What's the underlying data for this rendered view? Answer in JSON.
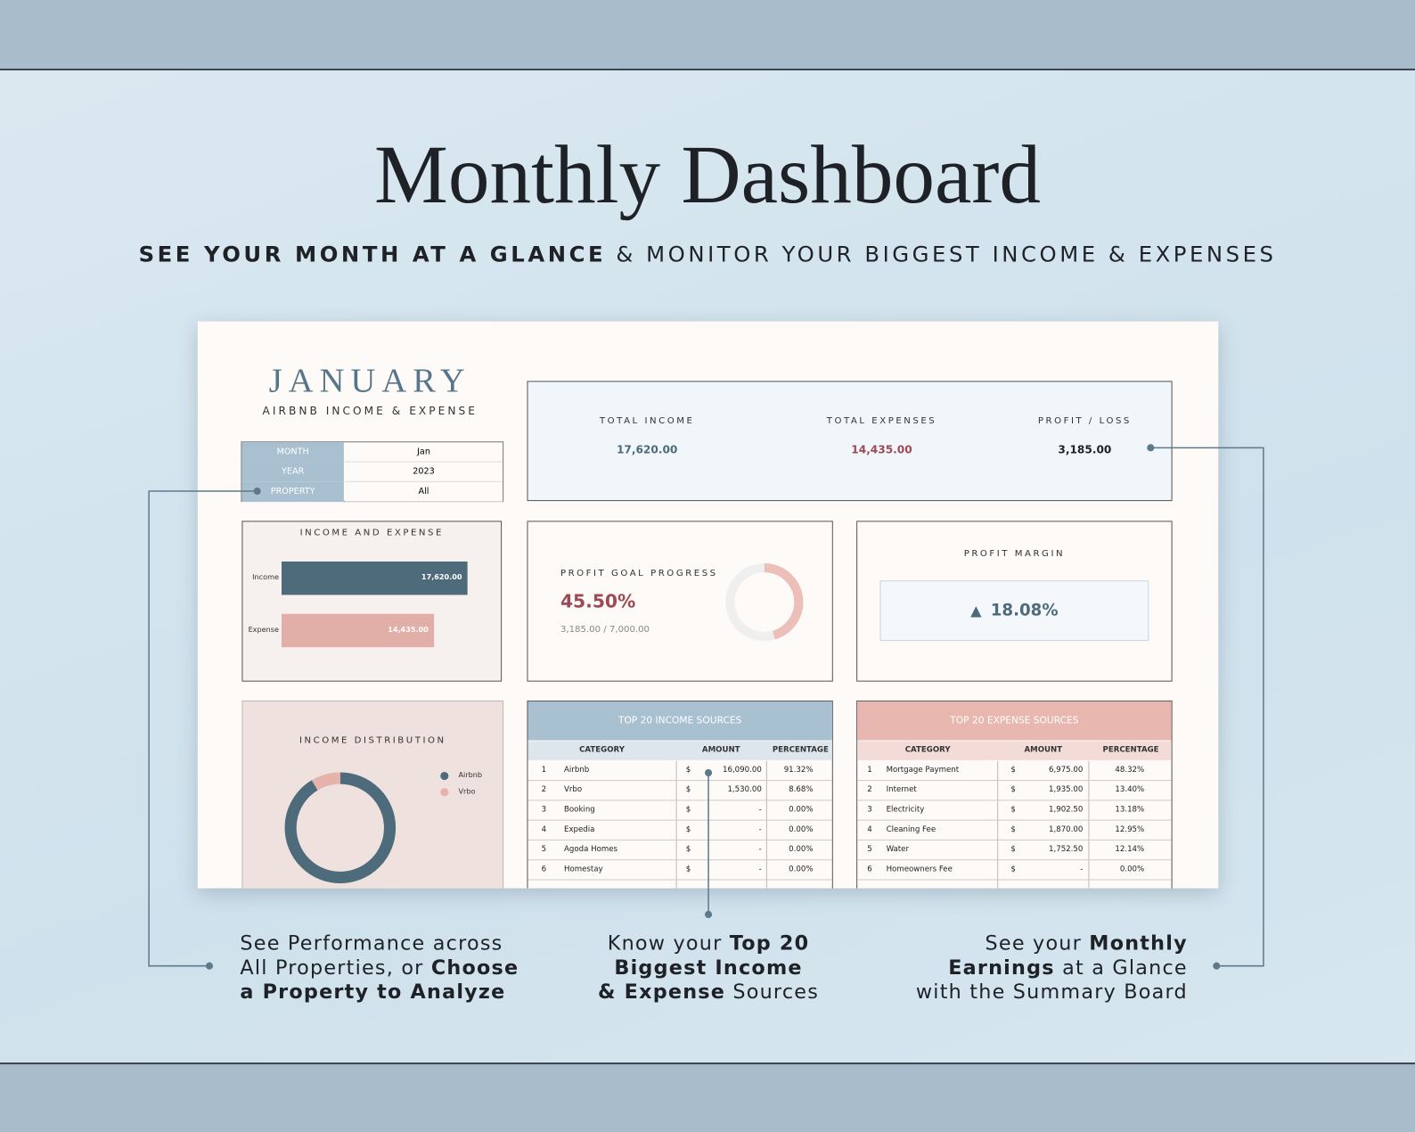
{
  "header": {
    "title": "Monthly Dashboard",
    "subtitle_bold": "SEE YOUR MONTH AT A GLANCE",
    "subtitle_rest": "& MONITOR YOUR BIGGEST INCOME & EXPENSES"
  },
  "dashboard": {
    "month": "JANUARY",
    "subtitle": "AIRBNB INCOME & EXPENSE",
    "filters": [
      [
        "MONTH",
        "Jan"
      ],
      [
        "YEAR",
        "2023"
      ],
      [
        "PROPERTY",
        "All"
      ]
    ],
    "summary": [
      {
        "label": "TOTAL INCOME",
        "value": "17,620.00",
        "color": "#4d6b7b"
      },
      {
        "label": "TOTAL EXPENSES",
        "value": "14,435.00",
        "color": "#9c4a53"
      },
      {
        "label": "PROFIT / LOSS",
        "value": "3,185.00",
        "color": "#1e2226"
      }
    ],
    "income_expense": {
      "title": "INCOME AND EXPENSE",
      "categories": [
        "Income",
        "Expense"
      ],
      "values": [
        17620,
        14435
      ],
      "value_labels": [
        "17,620.00",
        "14,435.00"
      ],
      "colors": [
        "#4d6b7b",
        "#e2aea8"
      ]
    },
    "profit_goal": {
      "title": "PROFIT GOAL PROGRESS",
      "value": 45.5,
      "label": "45.50%",
      "detail": "3,185.00 / 7,000.00",
      "color": "#ecbfb8"
    },
    "profit_margin": {
      "title": "PROFIT MARGIN",
      "value": "18.08%"
    },
    "income_distribution": {
      "title": "INCOME DISTRIBUTION",
      "series": [
        {
          "name": "Airbnb",
          "color": "#4d6b7b",
          "value": 91.32
        },
        {
          "name": "Vrbo",
          "color": "#e6b3ac",
          "value": 8.68
        }
      ]
    },
    "income_table": {
      "title": "TOP 20 INCOME SOURCES",
      "columns": [
        "CATEGORY",
        "AMOUNT",
        "PERCENTAGE"
      ],
      "rows": [
        [
          "1",
          "Airbnb",
          "$",
          "16,090.00",
          "91.32%"
        ],
        [
          "2",
          "Vrbo",
          "$",
          "1,530.00",
          "8.68%"
        ],
        [
          "3",
          "Booking",
          "$",
          "-",
          "0.00%"
        ],
        [
          "4",
          "Expedia",
          "$",
          "-",
          "0.00%"
        ],
        [
          "5",
          "Agoda Homes",
          "$",
          "-",
          "0.00%"
        ],
        [
          "6",
          "Homestay",
          "$",
          "-",
          "0.00%"
        ]
      ]
    },
    "expense_table": {
      "title": "TOP 20 EXPENSE SOURCES",
      "columns": [
        "CATEGORY",
        "AMOUNT",
        "PERCENTAGE"
      ],
      "rows": [
        [
          "1",
          "Mortgage Payment",
          "$",
          "6,975.00",
          "48.32%"
        ],
        [
          "2",
          "Internet",
          "$",
          "1,935.00",
          "13.40%"
        ],
        [
          "3",
          "Electricity",
          "$",
          "1,902.50",
          "13.18%"
        ],
        [
          "4",
          "Cleaning Fee",
          "$",
          "1,870.00",
          "12.95%"
        ],
        [
          "5",
          "Water",
          "$",
          "1,752.50",
          "12.14%"
        ],
        [
          "6",
          "Homeowners Fee",
          "$",
          "-",
          "0.00%"
        ]
      ]
    }
  },
  "callouts": [
    {
      "align": "left",
      "lines": [
        [
          {
            "text": "See Performance across",
            "bold": false
          }
        ],
        [
          {
            "text": "All Properties, or ",
            "bold": false
          },
          {
            "text": "Choose",
            "bold": true
          }
        ],
        [
          {
            "text": "a Property to Analyze",
            "bold": true
          }
        ]
      ]
    },
    {
      "align": "center",
      "lines": [
        [
          {
            "text": "Know your ",
            "bold": false
          },
          {
            "text": "Top 20",
            "bold": true
          }
        ],
        [
          {
            "text": "Biggest Income",
            "bold": true
          }
        ],
        [
          {
            "text": "& Expense",
            "bold": true
          },
          {
            "text": " Sources",
            "bold": false
          }
        ]
      ]
    },
    {
      "align": "right",
      "lines": [
        [
          {
            "text": "See your ",
            "bold": false
          },
          {
            "text": "Monthly",
            "bold": true
          }
        ],
        [
          {
            "text": "Earnings",
            "bold": true
          },
          {
            "text": " at a Glance",
            "bold": false
          }
        ],
        [
          {
            "text": "with the Summary Board",
            "bold": false
          }
        ]
      ]
    }
  ]
}
